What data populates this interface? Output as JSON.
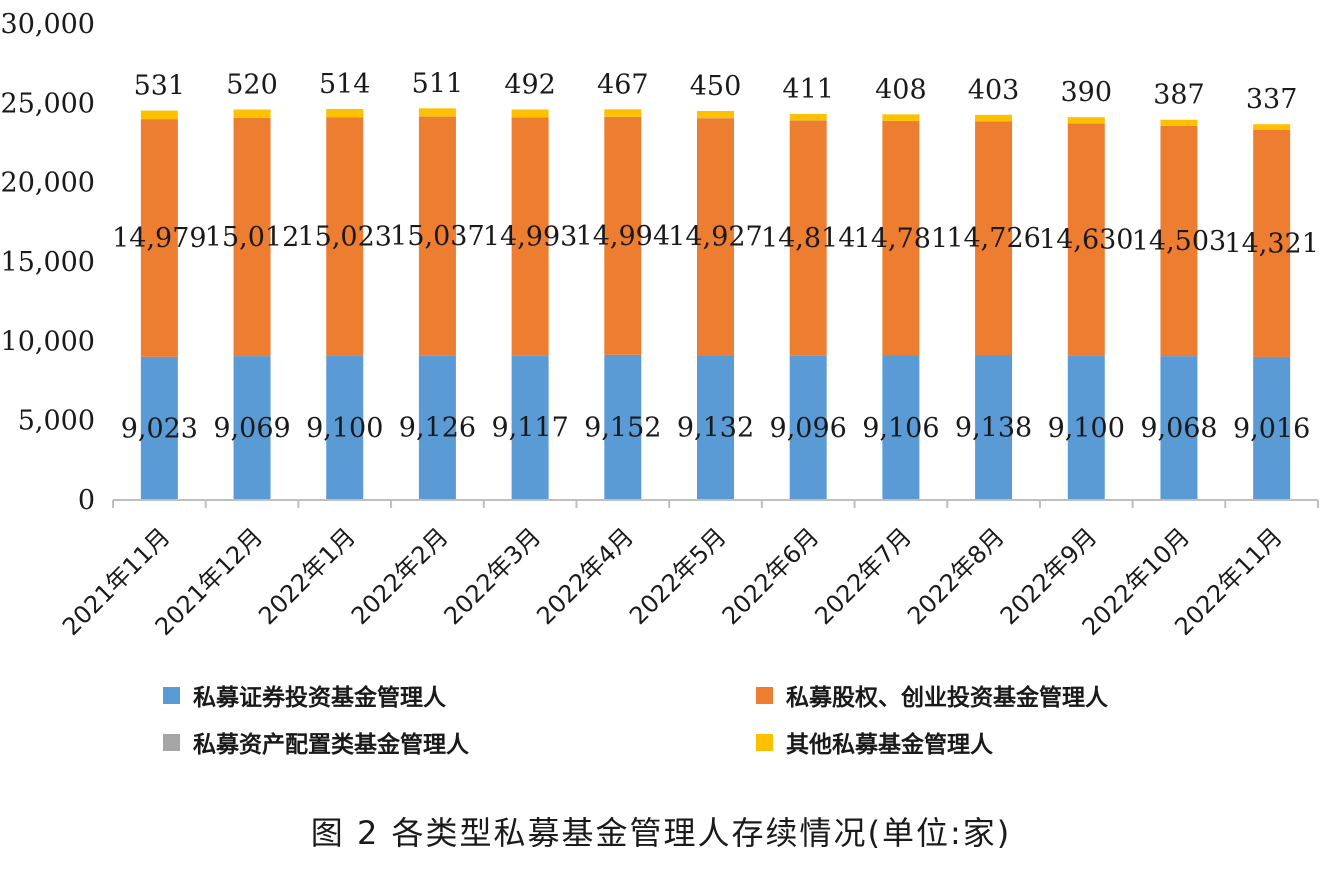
{
  "chart_data": {
    "type": "bar",
    "stacked": true,
    "title": "",
    "xlabel": "",
    "ylabel": "",
    "ylim": [
      0,
      30000
    ],
    "yticks": [
      0,
      5000,
      10000,
      15000,
      20000,
      25000,
      30000
    ],
    "ytick_labels": [
      "0",
      "5,000",
      "10,000",
      "15,000",
      "20,000",
      "25,000",
      "30,000"
    ],
    "grid": false,
    "legend_position": "bottom",
    "categories": [
      "2021年11月",
      "2021年12月",
      "2022年1月",
      "2022年2月",
      "2022年3月",
      "2022年4月",
      "2022年5月",
      "2022年6月",
      "2022年7月",
      "2022年8月",
      "2022年9月",
      "2022年10月",
      "2022年11月"
    ],
    "series": [
      {
        "name": "私募证券投资基金管理人",
        "color": "#5B9BD5",
        "values": [
          9023,
          9069,
          9100,
          9126,
          9117,
          9152,
          9132,
          9096,
          9106,
          9138,
          9100,
          9068,
          9016
        ],
        "labels": [
          "9,023",
          "9,069",
          "9,100",
          "9,126",
          "9,117",
          "9,152",
          "9,132",
          "9,096",
          "9,106",
          "9,138",
          "9,100",
          "9,068",
          "9,016"
        ]
      },
      {
        "name": "私募股权、创业投资基金管理人",
        "color": "#ED7D31",
        "values": [
          14979,
          15012,
          15023,
          15037,
          14993,
          14994,
          14927,
          14814,
          14781,
          14726,
          14630,
          14503,
          14321
        ],
        "labels": [
          "14,979",
          "15,012",
          "15,023",
          "15,037",
          "14,993",
          "14,994",
          "14,927",
          "14,814",
          "14,781",
          "14,726",
          "14,630",
          "14,503",
          "14,321"
        ]
      },
      {
        "name": "私募资产配置类基金管理人",
        "color": "#A5A5A5",
        "values": [
          9,
          9,
          9,
          9,
          9,
          9,
          9,
          9,
          9,
          9,
          9,
          9,
          9
        ],
        "labels": []
      },
      {
        "name": "其他私募基金管理人",
        "color": "#FFC000",
        "values": [
          531,
          520,
          514,
          511,
          492,
          467,
          450,
          411,
          408,
          403,
          390,
          387,
          337
        ],
        "labels": [
          "531",
          "520",
          "514",
          "511",
          "492",
          "467",
          "450",
          "411",
          "408",
          "403",
          "390",
          "387",
          "337"
        ]
      }
    ]
  },
  "legend": {
    "items": [
      {
        "label": "私募证券投资基金管理人",
        "color": "#5B9BD5"
      },
      {
        "label": "私募股权、创业投资基金管理人",
        "color": "#ED7D31"
      },
      {
        "label": "私募资产配置类基金管理人",
        "color": "#A5A5A5"
      },
      {
        "label": "其他私募基金管理人",
        "color": "#FFC000"
      }
    ]
  },
  "caption": "图 2  各类型私募基金管理人存续情况(单位:家)"
}
